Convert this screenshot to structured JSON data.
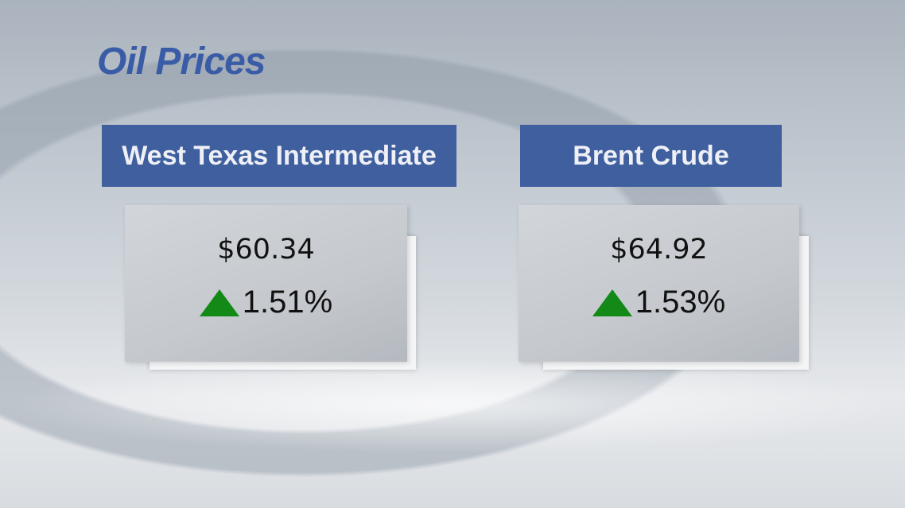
{
  "title": "Oil Prices",
  "colors": {
    "title": "#3a5ca6",
    "header_bg": "#3f5f9f",
    "up_arrow": "#138a17"
  },
  "benchmarks": [
    {
      "name": "West Texas Intermediate",
      "price": "$60.34",
      "change": "1.51%",
      "direction_icon": "triangle-up-icon"
    },
    {
      "name": "Brent Crude",
      "price": "$64.92",
      "change": "1.53%",
      "direction_icon": "triangle-up-icon"
    }
  ]
}
